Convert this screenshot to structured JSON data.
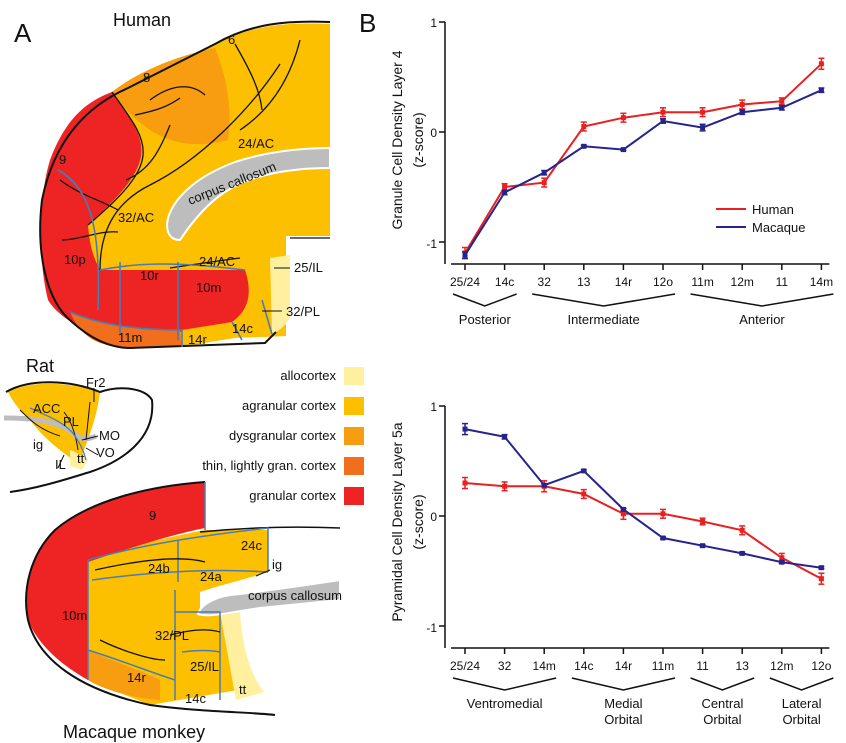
{
  "panels": {
    "a": "A",
    "b": "B"
  },
  "human": {
    "title": "Human",
    "labels": {
      "r6": "6",
      "r8": "8",
      "r9": "9",
      "r24ac": "24/AC",
      "r32ac": "32/AC",
      "cc": "corpus callosum",
      "r10p": "10p",
      "r10r": "10r",
      "r10m": "10m",
      "r24ac_low": "24/AC",
      "r25il": "25/IL",
      "r32pl": "32/PL",
      "r11m": "11m",
      "r14r": "14r",
      "r14c": "14c"
    }
  },
  "rat": {
    "title": "Rat",
    "labels": {
      "fr2": "Fr2",
      "acc": "ACC",
      "pl": "PL",
      "mo": "MO",
      "ig": "ig",
      "vo": "VO",
      "il": "IL",
      "tt": "tt"
    }
  },
  "macaque": {
    "title": "Macaque monkey",
    "labels": {
      "r9": "9",
      "r24c": "24c",
      "r24b": "24b",
      "r24a": "24a",
      "ig": "ig",
      "cc": "corpus callosum",
      "r10m": "10m",
      "r32pl": "32/PL",
      "r25il": "25/IL",
      "r14r": "14r",
      "r14c": "14c",
      "tt": "tt"
    }
  },
  "cortex_legend": [
    {
      "label": "allocortex",
      "color": "#fff0a0"
    },
    {
      "label": "agranular cortex",
      "color": "#fcc000"
    },
    {
      "label": "dysgranular cortex",
      "color": "#f89c10"
    },
    {
      "label": "thin, lightly gran. cortex",
      "color": "#f06e1c"
    },
    {
      "label": "granular cortex",
      "color": "#ee2424"
    }
  ],
  "colors": {
    "human_series": "#e82020",
    "macaque_series": "#24248c",
    "boundary": "#4a7cb4",
    "corpus_callosum": "#bdbdbd"
  },
  "chart_data": [
    {
      "type": "line",
      "ylabel": "Granule Cell Density Layer 4",
      "ylabel2": "(z-score)",
      "ylim": [
        -1.2,
        1
      ],
      "yticks": [
        "1",
        "0",
        "-1"
      ],
      "categories": [
        "25/24",
        "14c",
        "32",
        "13",
        "14r",
        "12o",
        "11m",
        "12m",
        "11",
        "14m"
      ],
      "groups": [
        {
          "label": "Posterior",
          "from": 0,
          "to": 1
        },
        {
          "label": "Intermediate",
          "from": 2,
          "to": 5
        },
        {
          "label": "Anterior",
          "from": 6,
          "to": 9
        }
      ],
      "legend": {
        "human": "Human",
        "macaque": "Macaque"
      },
      "series": [
        {
          "name": "Human",
          "values": [
            -1.1,
            -0.5,
            -0.46,
            0.05,
            0.13,
            0.18,
            0.18,
            0.25,
            0.28,
            0.62
          ],
          "errors": [
            0.05,
            0.03,
            0.04,
            0.04,
            0.04,
            0.04,
            0.04,
            0.04,
            0.03,
            0.05
          ]
        },
        {
          "name": "Macaque",
          "values": [
            -1.12,
            -0.55,
            -0.37,
            -0.13,
            -0.16,
            0.1,
            0.04,
            0.18,
            0.22,
            0.38
          ],
          "errors": [
            0.03,
            0.02,
            0.02,
            0.01,
            0.01,
            0.02,
            0.03,
            0.02,
            0.02,
            0.02
          ]
        }
      ]
    },
    {
      "type": "line",
      "ylabel": "Pyramidal Cell Density Layer 5a",
      "ylabel2": "(z-score)",
      "ylim": [
        -1.2,
        1
      ],
      "yticks": [
        "1",
        "0",
        "-1"
      ],
      "categories": [
        "25/24",
        "32",
        "14m",
        "14c",
        "14r",
        "11m",
        "11",
        "13",
        "12m",
        "12o"
      ],
      "groups": [
        {
          "label": "Ventromedial",
          "label2": "",
          "from": 0,
          "to": 2
        },
        {
          "label": "Medial",
          "label2": "Orbital",
          "from": 3,
          "to": 5
        },
        {
          "label": "Central",
          "label2": "Orbital",
          "from": 6,
          "to": 7
        },
        {
          "label": "Lateral",
          "label2": "Orbital",
          "from": 8,
          "to": 9
        }
      ],
      "series": [
        {
          "name": "Human",
          "values": [
            0.3,
            0.27,
            0.27,
            0.2,
            0.02,
            0.02,
            -0.05,
            -0.13,
            -0.38,
            -0.57
          ],
          "errors": [
            0.05,
            0.04,
            0.05,
            0.04,
            0.05,
            0.04,
            0.03,
            0.04,
            0.04,
            0.05
          ]
        },
        {
          "name": "Macaque",
          "values": [
            0.79,
            0.72,
            0.28,
            0.41,
            0.06,
            -0.2,
            -0.27,
            -0.34,
            -0.42,
            -0.47
          ],
          "errors": [
            0.05,
            0.02,
            0.01,
            0.01,
            0.01,
            0.01,
            0.01,
            0.01,
            0.01,
            0.01
          ]
        }
      ]
    }
  ]
}
